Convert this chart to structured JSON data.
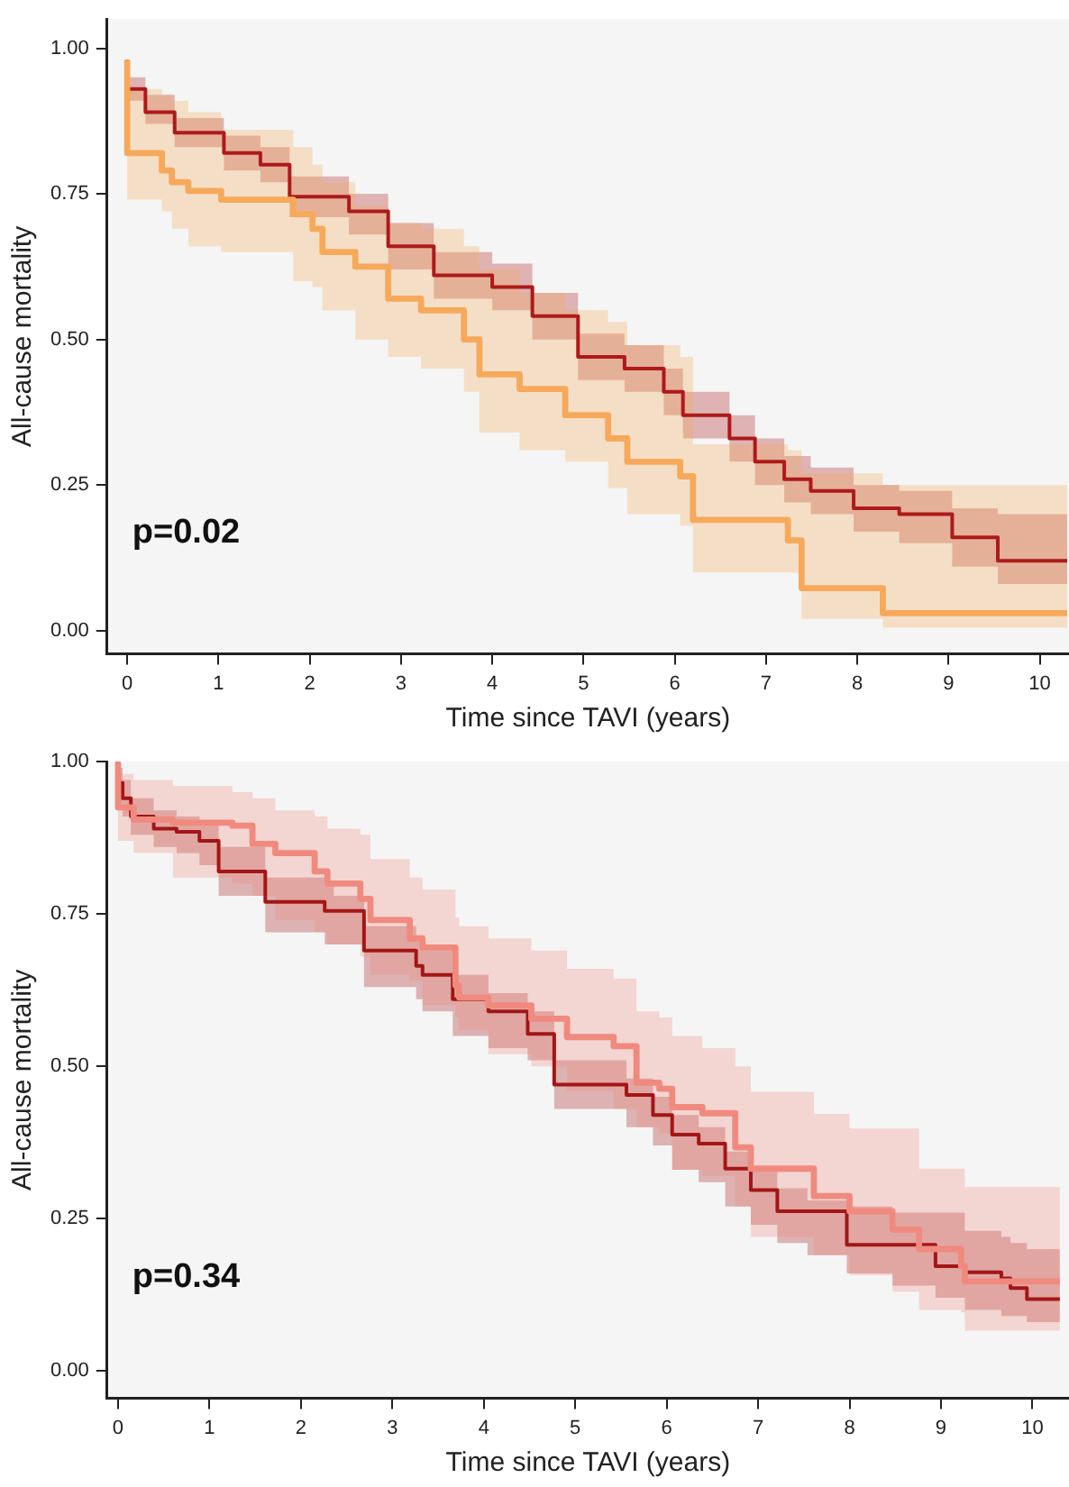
{
  "chart_data": [
    {
      "type": "step",
      "xlabel": "Time since TAVI (years)",
      "ylabel": "All-cause mortality",
      "annotations": [
        "p=0.02"
      ],
      "grid": false,
      "legend": false,
      "xlim": [
        -0.22,
        10.32
      ],
      "xticks": [
        0,
        1,
        2,
        3,
        4,
        5,
        6,
        7,
        8,
        9,
        10
      ],
      "ylim": [
        -0.04,
        1.05
      ],
      "yticks": [
        {
          "value": 0,
          "label": "0.00"
        },
        {
          "value": 0.25,
          "label": "0.25"
        },
        {
          "value": 0.5,
          "label": "0.50"
        },
        {
          "value": 0.75,
          "label": "0.75"
        },
        {
          "value": 1,
          "label": "1.00"
        }
      ],
      "series": [
        {
          "color": "#f6a95a",
          "x": [
            0,
            0.38,
            0.49,
            0.67,
            1.03,
            1.82,
            2.03,
            2.14,
            2.5,
            2.86,
            3.22,
            3.69,
            3.86,
            4.3,
            4.8,
            5.27,
            5.48,
            6.06,
            6.2,
            7.24,
            7.39,
            8.28,
            9.75,
            10.3
          ],
          "values": [
            0.98,
            0.82,
            0.79,
            0.77,
            0.755,
            0.74,
            0.715,
            0.69,
            0.65,
            0.625,
            0.57,
            0.55,
            0.5,
            0.44,
            0.415,
            0.37,
            0.33,
            0.29,
            0.265,
            0.19,
            0.155,
            0.073,
            0.03,
            0.03
          ],
          "lower": [
            0.98,
            0.74,
            0.72,
            0.69,
            0.66,
            0.65,
            0.6,
            0.59,
            0.55,
            0.5,
            0.47,
            0.45,
            0.41,
            0.34,
            0.31,
            0.29,
            0.245,
            0.2,
            0.18,
            0.1,
            0.1,
            0.02,
            0.005,
            0.005
          ],
          "upper": [
            0.98,
            0.93,
            0.92,
            0.91,
            0.89,
            0.86,
            0.83,
            0.8,
            0.77,
            0.73,
            0.7,
            0.69,
            0.66,
            0.62,
            0.58,
            0.55,
            0.53,
            0.49,
            0.47,
            0.32,
            0.31,
            0.27,
            0.25,
            0.25
          ]
        },
        {
          "color": "#ad1a1a",
          "x": [
            0,
            0.2,
            0.52,
            1.06,
            1.46,
            1.78,
            2.43,
            2.86,
            3.36,
            4,
            4.44,
            4.94,
            5.45,
            5.88,
            6.09,
            6.6,
            6.88,
            7.2,
            7.49,
            7.96,
            8.46,
            9.04,
            9.54,
            10.1,
            10.3
          ],
          "values": [
            0.98,
            0.93,
            0.89,
            0.855,
            0.82,
            0.8,
            0.745,
            0.72,
            0.66,
            0.61,
            0.59,
            0.54,
            0.47,
            0.45,
            0.41,
            0.37,
            0.33,
            0.29,
            0.26,
            0.24,
            0.21,
            0.2,
            0.16,
            0.12,
            0.12
          ],
          "lower": [
            0.98,
            0.91,
            0.87,
            0.83,
            0.79,
            0.77,
            0.71,
            0.68,
            0.62,
            0.57,
            0.55,
            0.5,
            0.43,
            0.41,
            0.37,
            0.33,
            0.29,
            0.25,
            0.22,
            0.2,
            0.17,
            0.15,
            0.11,
            0.08,
            0.08
          ],
          "upper": [
            0.98,
            0.95,
            0.92,
            0.88,
            0.85,
            0.83,
            0.78,
            0.75,
            0.7,
            0.65,
            0.63,
            0.58,
            0.51,
            0.49,
            0.45,
            0.41,
            0.37,
            0.33,
            0.3,
            0.28,
            0.25,
            0.24,
            0.21,
            0.2,
            0.2
          ]
        }
      ]
    },
    {
      "type": "step",
      "xlabel": "Time since TAVI (years)",
      "ylabel": "All-cause mortality",
      "annotations": [
        "p=0.34"
      ],
      "grid": false,
      "legend": false,
      "xlim": [
        -0.12,
        10.4
      ],
      "xticks": [
        0,
        1,
        2,
        3,
        4,
        5,
        6,
        7,
        8,
        9,
        10
      ],
      "ylim": [
        -0.045,
        1.0
      ],
      "yticks": [
        {
          "value": 0,
          "label": "0.00"
        },
        {
          "value": 0.25,
          "label": "0.25"
        },
        {
          "value": 0.5,
          "label": "0.50"
        },
        {
          "value": 0.75,
          "label": "0.75"
        },
        {
          "value": 1,
          "label": "1.00"
        }
      ],
      "series": [
        {
          "color": "#f08a7e",
          "x": [
            0,
            0.17,
            0.6,
            1.25,
            1.47,
            1.72,
            2.15,
            2.29,
            2.65,
            2.76,
            3.19,
            3.33,
            3.69,
            3.73,
            4.05,
            4.52,
            4.91,
            5.42,
            5.67,
            5.92,
            6.06,
            6.39,
            6.75,
            6.92,
            7.61,
            8,
            8.47,
            8.76,
            9.22,
            9.26,
            9.91,
            10.3
          ],
          "values": [
            1,
            0.925,
            0.905,
            0.9,
            0.895,
            0.865,
            0.85,
            0.82,
            0.8,
            0.775,
            0.74,
            0.71,
            0.695,
            0.633,
            0.613,
            0.6,
            0.578,
            0.548,
            0.533,
            0.473,
            0.463,
            0.433,
            0.423,
            0.367,
            0.332,
            0.287,
            0.262,
            0.232,
            0.2,
            0.172,
            0.147,
            0.147
          ],
          "lower": [
            1,
            0.87,
            0.85,
            0.81,
            0.8,
            0.78,
            0.74,
            0.72,
            0.7,
            0.68,
            0.65,
            0.64,
            0.6,
            0.58,
            0.56,
            0.52,
            0.5,
            0.46,
            0.43,
            0.4,
            0.39,
            0.33,
            0.32,
            0.27,
            0.22,
            0.19,
            0.157,
            0.13,
            0.1,
            0.096,
            0.066,
            0.066
          ],
          "upper": [
            1,
            0.98,
            0.97,
            0.96,
            0.95,
            0.94,
            0.92,
            0.91,
            0.89,
            0.88,
            0.84,
            0.81,
            0.79,
            0.744,
            0.73,
            0.71,
            0.69,
            0.66,
            0.644,
            0.59,
            0.58,
            0.55,
            0.53,
            0.5,
            0.458,
            0.422,
            0.398,
            0.398,
            0.332,
            0.332,
            0.302,
            0.302
          ]
        },
        {
          "color": "#a31616",
          "x": [
            0,
            0.05,
            0.14,
            0.39,
            0.64,
            0.89,
            1.1,
            1.61,
            2.26,
            2.36,
            2.69,
            3.26,
            3.33,
            3.66,
            4.05,
            4.48,
            4.77,
            5.56,
            5.85,
            6.06,
            6.35,
            6.64,
            6.92,
            7.21,
            7.54,
            7.97,
            8.47,
            8.94,
            9.26,
            9.66,
            9.76,
            9.94,
            10.27,
            10.3
          ],
          "values": [
            1,
            0.965,
            0.94,
            0.91,
            0.89,
            0.885,
            0.87,
            0.82,
            0.77,
            0.755,
            0.755,
            0.69,
            0.665,
            0.65,
            0.61,
            0.59,
            0.553,
            0.47,
            0.453,
            0.42,
            0.388,
            0.373,
            0.332,
            0.297,
            0.262,
            0.262,
            0.207,
            0.207,
            0.172,
            0.162,
            0.152,
            0.136,
            0.118,
            0.118
          ],
          "lower": [
            1,
            0.93,
            0.91,
            0.88,
            0.86,
            0.85,
            0.83,
            0.78,
            0.72,
            0.7,
            0.7,
            0.63,
            0.61,
            0.59,
            0.55,
            0.53,
            0.51,
            0.43,
            0.4,
            0.37,
            0.33,
            0.31,
            0.27,
            0.24,
            0.21,
            0.19,
            0.16,
            0.14,
            0.12,
            0.1,
            0.09,
            0.09,
            0.08,
            0.08
          ],
          "upper": [
            1,
            0.99,
            0.97,
            0.94,
            0.92,
            0.91,
            0.9,
            0.86,
            0.81,
            0.8,
            0.78,
            0.73,
            0.71,
            0.69,
            0.65,
            0.62,
            0.59,
            0.51,
            0.48,
            0.45,
            0.42,
            0.4,
            0.36,
            0.33,
            0.3,
            0.28,
            0.27,
            0.26,
            0.26,
            0.23,
            0.22,
            0.21,
            0.2,
            0.2
          ]
        }
      ]
    }
  ]
}
